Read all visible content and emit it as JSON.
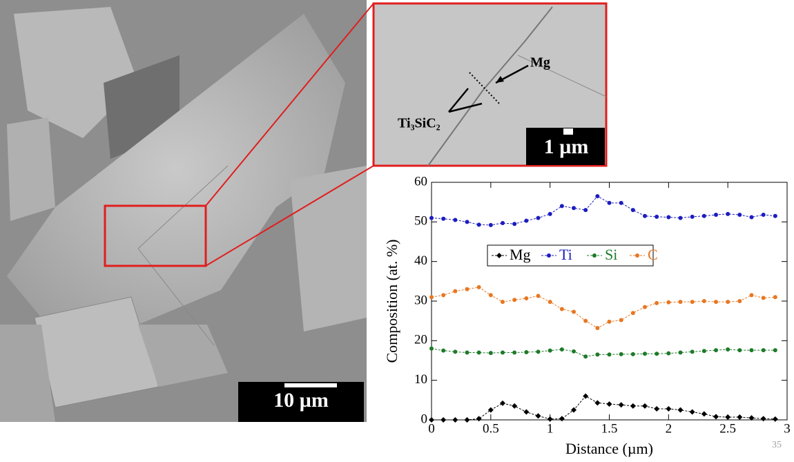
{
  "chart_data": {
    "type": "line",
    "x_label": "Distance (µm)",
    "y_label": "Composition (at. %)",
    "x": [
      0,
      0.1,
      0.2,
      0.3,
      0.4,
      0.5,
      0.6,
      0.7,
      0.8,
      0.9,
      1.0,
      1.1,
      1.2,
      1.3,
      1.4,
      1.5,
      1.6,
      1.7,
      1.8,
      1.9,
      2.0,
      2.1,
      2.2,
      2.3,
      2.4,
      2.5,
      2.6,
      2.7,
      2.8,
      2.9
    ],
    "series": [
      {
        "name": "Mg",
        "color": "#000000",
        "values": [
          0,
          0,
          0,
          0,
          0.3,
          2.5,
          4.2,
          3.5,
          2,
          1,
          0.2,
          0.3,
          2.5,
          6,
          4.3,
          4,
          3.8,
          3.5,
          3.5,
          2.8,
          2.8,
          2.5,
          2,
          1.5,
          0.8,
          0.7,
          0.7,
          0.5,
          0.3,
          0.2
        ]
      },
      {
        "name": "Ti",
        "color": "#1c1cc0",
        "values": [
          51,
          50.8,
          50.5,
          50,
          49.3,
          49.2,
          49.7,
          49.5,
          50.3,
          51,
          52,
          54,
          53.5,
          53,
          56.5,
          54.8,
          54.8,
          53,
          51.5,
          51.3,
          51.2,
          51,
          51.3,
          51.5,
          51.8,
          52,
          51.8,
          51.2,
          51.8,
          51.5
        ]
      },
      {
        "name": "Si",
        "color": "#1e7a2a",
        "values": [
          18,
          17.5,
          17.2,
          17,
          17,
          16.9,
          17,
          17,
          17.1,
          17.2,
          17.5,
          17.8,
          17.3,
          16,
          16.5,
          16.5,
          16.6,
          16.6,
          16.7,
          16.7,
          16.8,
          17,
          17.2,
          17.4,
          17.6,
          17.8,
          17.6,
          17.6,
          17.6,
          17.6
        ]
      },
      {
        "name": "C",
        "color": "#e87722",
        "values": [
          31,
          31.5,
          32.5,
          33,
          33.5,
          31.5,
          29.8,
          30.3,
          30.7,
          31.3,
          29.8,
          28,
          27.3,
          25,
          23.2,
          24.8,
          25.2,
          27,
          28.5,
          29.5,
          29.7,
          29.8,
          29.8,
          30,
          29.8,
          29.8,
          30,
          31.5,
          30.8,
          31
        ]
      }
    ],
    "xlim": [
      0,
      3
    ],
    "xticks": [
      0,
      0.5,
      1,
      1.5,
      2,
      2.5,
      3
    ],
    "ylim": [
      0,
      60
    ],
    "yticks": [
      0,
      10,
      20,
      30,
      40,
      50,
      60
    ]
  },
  "images": {
    "scale_bar_large": "10 µm",
    "scale_bar_small": "1 µm",
    "label_mg": "Mg",
    "label_phase": "Ti₃SiC₂"
  },
  "slide_number": "35"
}
